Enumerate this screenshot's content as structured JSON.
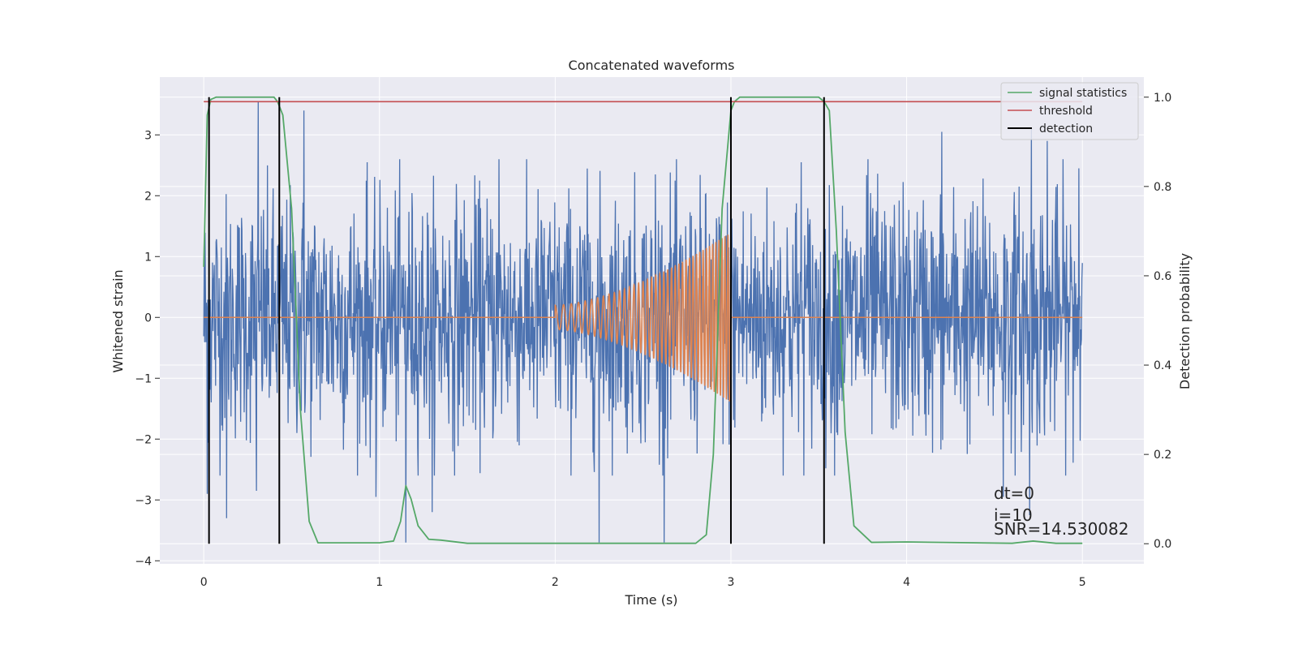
{
  "chart_data": {
    "type": "line",
    "title": "Concatenated waveforms",
    "xlabel": "Time (s)",
    "ylabel": "Whitened strain",
    "y2label": "Detection probability",
    "xlim": [
      -0.25,
      5.35
    ],
    "ylim": [
      -4.05,
      3.95
    ],
    "y2lim": [
      -0.045,
      1.045
    ],
    "xticks": [
      0,
      1,
      2,
      3,
      4,
      5
    ],
    "yticks": [
      -4,
      -3,
      -2,
      -1,
      0,
      1,
      2,
      3
    ],
    "y2ticks": [
      0.0,
      0.2,
      0.4,
      0.6,
      0.8,
      1.0
    ],
    "y2ticklabels": [
      "0.0",
      "0.2",
      "0.4",
      "0.6",
      "0.8",
      "1.0"
    ],
    "grid": true,
    "legend_position": "top-right",
    "legend": [
      {
        "label": "signal statistics",
        "color": "#55a868"
      },
      {
        "label": "threshold",
        "color": "#c44e52"
      },
      {
        "label": "detection",
        "color": "#000000"
      }
    ],
    "series": [
      {
        "role": "whitened-strain",
        "color": "#4c72b0",
        "x_range": [
          0,
          5
        ],
        "samples": 2000,
        "typical_amplitude": 1.0,
        "spikes": [
          {
            "x": 0.31,
            "y": 3.55
          },
          {
            "x": 0.57,
            "y": 3.4
          },
          {
            "x": 0.02,
            "y": -2.9
          },
          {
            "x": 0.13,
            "y": -3.3
          },
          {
            "x": 0.3,
            "y": -2.85
          },
          {
            "x": 0.93,
            "y": 2.55
          },
          {
            "x": 0.98,
            "y": -2.95
          },
          {
            "x": 1.15,
            "y": -3.7
          },
          {
            "x": 1.3,
            "y": -3.2
          },
          {
            "x": 1.68,
            "y": 2.6
          },
          {
            "x": 2.25,
            "y": -3.7
          },
          {
            "x": 2.62,
            "y": -3.7
          },
          {
            "x": 2.57,
            "y": 2.35
          },
          {
            "x": 3.4,
            "y": 2.55
          },
          {
            "x": 3.78,
            "y": 2.6
          },
          {
            "x": 4.2,
            "y": 3.05
          },
          {
            "x": 4.55,
            "y": -2.95
          },
          {
            "x": 4.71,
            "y": 3.1
          },
          {
            "x": 4.7,
            "y": -3.25
          },
          {
            "x": 4.8,
            "y": 2.9
          },
          {
            "x": 4.98,
            "y": 2.45
          }
        ]
      },
      {
        "role": "injected-chirp",
        "color": "#dd8452",
        "x_range": [
          0,
          5
        ],
        "chirp": {
          "start": 2.0,
          "end": 3.0,
          "amp_start": 0.2,
          "amp_end": 1.4,
          "freq_start": 20,
          "freq_end": 60
        }
      },
      {
        "name": "signal statistics",
        "color": "#55a868",
        "x": [
          0.0,
          0.02,
          0.04,
          0.07,
          0.1,
          0.4,
          0.42,
          0.45,
          0.5,
          0.55,
          0.6,
          0.65,
          1.0,
          1.08,
          1.12,
          1.15,
          1.18,
          1.22,
          1.28,
          1.35,
          1.5,
          2.8,
          2.86,
          2.9,
          2.95,
          3.0,
          3.02,
          3.05,
          3.1,
          3.5,
          3.53,
          3.56,
          3.6,
          3.65,
          3.7,
          3.8,
          4.0,
          4.6,
          4.72,
          4.85,
          5.0
        ],
        "y": [
          0.62,
          0.96,
          0.995,
          1.0,
          1.0,
          1.0,
          0.99,
          0.96,
          0.75,
          0.3,
          0.05,
          0.002,
          0.002,
          0.006,
          0.05,
          0.13,
          0.1,
          0.04,
          0.01,
          0.008,
          0.001,
          0.001,
          0.02,
          0.2,
          0.75,
          0.97,
          0.99,
          1.0,
          1.0,
          1.0,
          0.99,
          0.97,
          0.7,
          0.25,
          0.04,
          0.003,
          0.004,
          0.001,
          0.006,
          0.001,
          0.001
        ]
      },
      {
        "name": "threshold",
        "color": "#c44e52",
        "x": [
          0,
          5
        ],
        "y": [
          0.99,
          0.99
        ]
      },
      {
        "name": "detection",
        "color": "#000000",
        "vlines": [
          0.03,
          0.43,
          3.0,
          3.53
        ],
        "y_span": [
          0,
          1
        ]
      }
    ],
    "annotations": [
      "dt=0",
      "i=10",
      "SNR=14.530082"
    ]
  }
}
